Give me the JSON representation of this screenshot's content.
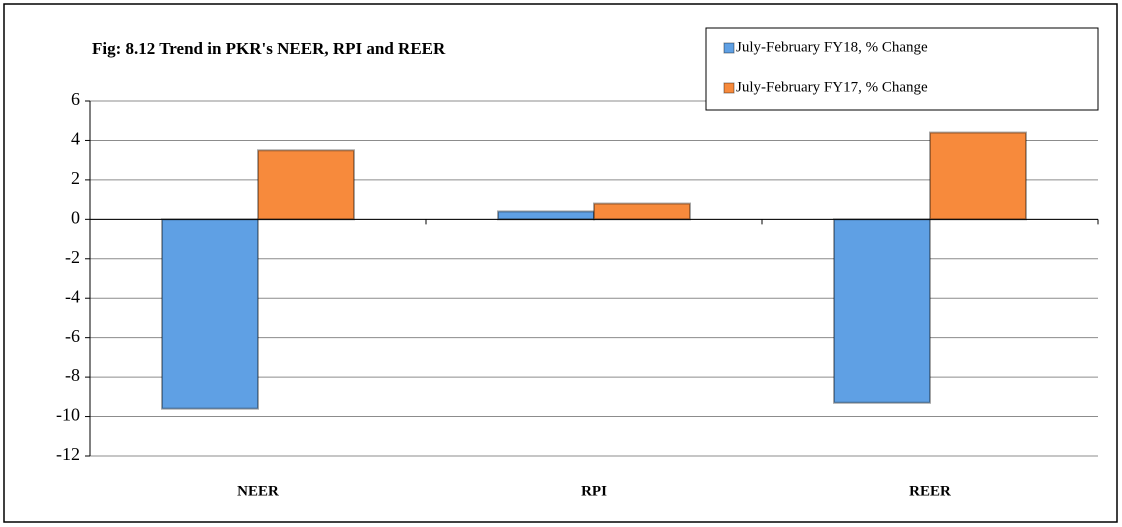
{
  "chart_data": {
    "type": "bar",
    "title": "Fig: 8.12 Trend in PKR's NEER, RPI and REER",
    "categories": [
      "NEER",
      "RPI",
      "REER"
    ],
    "series": [
      {
        "name": "July-February  FY18, % Change",
        "color": "#5fa0e4",
        "values": [
          -9.6,
          0.4,
          -9.3
        ]
      },
      {
        "name": "July-February  FY17, % Change",
        "color": "#f78a3c",
        "values": [
          3.5,
          0.8,
          4.4
        ]
      }
    ],
    "ylim": [
      -12,
      6
    ],
    "yticks": [
      -12,
      -10,
      -8,
      -6,
      -4,
      -2,
      0,
      2,
      4,
      6
    ],
    "grid": true,
    "legend": "top-right"
  }
}
